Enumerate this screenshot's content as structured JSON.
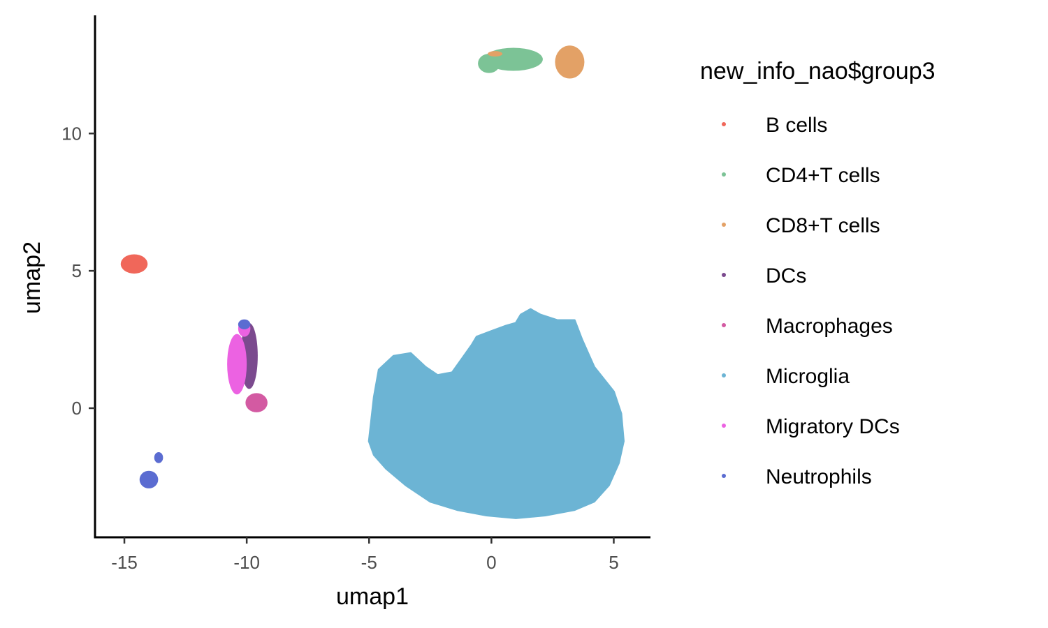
{
  "chart_data": {
    "type": "scatter",
    "title": "",
    "xlabel": "umap1",
    "ylabel": "umap2",
    "xlim": [
      -16.2,
      6.5
    ],
    "ylim": [
      -4.7,
      14.3
    ],
    "x_ticks": [
      -15,
      -10,
      -5,
      0,
      5
    ],
    "x_tick_labels": [
      "-15",
      "-10",
      "-5",
      "0",
      "5"
    ],
    "y_ticks": [
      0,
      5,
      10
    ],
    "y_tick_labels": [
      "0",
      "5",
      "10"
    ],
    "grid": false,
    "legend_position": "right",
    "legend_title": "new_info_nao$group3",
    "series": [
      {
        "name": "B cells",
        "color": "#F0675A",
        "regions": [
          {
            "type": "ellipse",
            "cx": -14.6,
            "cy": 5.25,
            "rx": 0.55,
            "ry": 0.35
          }
        ]
      },
      {
        "name": "CD4+T cells",
        "color": "#7CC396",
        "regions": [
          {
            "type": "ellipse",
            "cx": 0.9,
            "cy": 12.7,
            "rx": 1.2,
            "ry": 0.42
          },
          {
            "type": "ellipse",
            "cx": -0.1,
            "cy": 12.55,
            "rx": 0.45,
            "ry": 0.35
          }
        ]
      },
      {
        "name": "CD8+T cells",
        "color": "#E3A166",
        "regions": [
          {
            "type": "ellipse",
            "cx": 3.2,
            "cy": 12.6,
            "rx": 0.6,
            "ry": 0.6
          },
          {
            "type": "ellipse",
            "cx": 0.15,
            "cy": 12.9,
            "rx": 0.3,
            "ry": 0.1
          }
        ]
      },
      {
        "name": "DCs",
        "color": "#7B4A8E",
        "regions": [
          {
            "type": "ellipse",
            "cx": -9.9,
            "cy": 1.9,
            "rx": 0.35,
            "ry": 1.2
          }
        ]
      },
      {
        "name": "Macrophages",
        "color": "#D35AA2",
        "regions": [
          {
            "type": "ellipse",
            "cx": -9.6,
            "cy": 0.2,
            "rx": 0.45,
            "ry": 0.35
          }
        ]
      },
      {
        "name": "Microglia",
        "color": "#6CB4D4",
        "regions": [
          {
            "type": "polygon",
            "points": [
              [
                -5,
                -1.2
              ],
              [
                -4.8,
                0.4
              ],
              [
                -4.6,
                1.4
              ],
              [
                -4.0,
                1.9
              ],
              [
                -3.3,
                2.0
              ],
              [
                -2.7,
                1.5
              ],
              [
                -2.2,
                1.2
              ],
              [
                -1.6,
                1.3
              ],
              [
                -1.2,
                1.8
              ],
              [
                -0.8,
                2.3
              ],
              [
                -0.6,
                2.6
              ],
              [
                0.0,
                2.8
              ],
              [
                0.6,
                3.0
              ],
              [
                1.0,
                3.1
              ],
              [
                1.2,
                3.4
              ],
              [
                1.6,
                3.6
              ],
              [
                2.0,
                3.4
              ],
              [
                2.7,
                3.2
              ],
              [
                3.4,
                3.2
              ],
              [
                3.7,
                2.5
              ],
              [
                4.2,
                1.5
              ],
              [
                5.0,
                0.6
              ],
              [
                5.3,
                -0.2
              ],
              [
                5.4,
                -1.2
              ],
              [
                5.2,
                -2.0
              ],
              [
                4.8,
                -2.8
              ],
              [
                4.2,
                -3.4
              ],
              [
                3.4,
                -3.7
              ],
              [
                2.2,
                -3.9
              ],
              [
                1.0,
                -4.0
              ],
              [
                -0.2,
                -3.9
              ],
              [
                -1.4,
                -3.7
              ],
              [
                -2.5,
                -3.4
              ],
              [
                -3.5,
                -2.8
              ],
              [
                -4.3,
                -2.2
              ],
              [
                -4.8,
                -1.7
              ]
            ]
          }
        ]
      },
      {
        "name": "Migratory DCs",
        "color": "#EC62E2",
        "regions": [
          {
            "type": "ellipse",
            "cx": -10.4,
            "cy": 1.6,
            "rx": 0.4,
            "ry": 1.1
          },
          {
            "type": "ellipse",
            "cx": -10.1,
            "cy": 2.9,
            "rx": 0.25,
            "ry": 0.3
          }
        ]
      },
      {
        "name": "Neutrophils",
        "color": "#5B6CD1",
        "regions": [
          {
            "type": "ellipse",
            "cx": -14.0,
            "cy": -2.6,
            "rx": 0.38,
            "ry": 0.32
          },
          {
            "type": "ellipse",
            "cx": -13.6,
            "cy": -1.8,
            "rx": 0.18,
            "ry": 0.2
          },
          {
            "type": "ellipse",
            "cx": -10.1,
            "cy": 3.05,
            "rx": 0.25,
            "ry": 0.18
          }
        ]
      }
    ]
  }
}
